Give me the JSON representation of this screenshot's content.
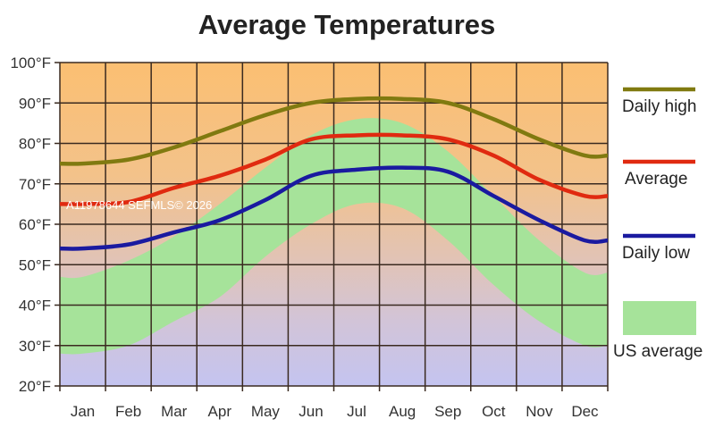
{
  "chart_data": {
    "type": "line",
    "title": "Average Temperatures",
    "categories": [
      "Jan",
      "Feb",
      "Mar",
      "Apr",
      "May",
      "Jun",
      "Jul",
      "Aug",
      "Sep",
      "Oct",
      "Nov",
      "Dec"
    ],
    "ylim": [
      20,
      100
    ],
    "yticks": [
      "20°F",
      "30°F",
      "40°F",
      "50°F",
      "60°F",
      "70°F",
      "80°F",
      "90°F",
      "100°F"
    ],
    "grid": true,
    "legend_position": "right",
    "series": [
      {
        "name": "Daily high",
        "color": "#807a10",
        "values": [
          75,
          76,
          79,
          83,
          87,
          90,
          91,
          91,
          90,
          86,
          81,
          77
        ]
      },
      {
        "name": "Average",
        "color": "#e02a10",
        "values": [
          65,
          65.5,
          69,
          72,
          76,
          81,
          82,
          82,
          81,
          77,
          71,
          67
        ]
      },
      {
        "name": "Daily low",
        "color": "#1a1aa0",
        "values": [
          54,
          55,
          58,
          61,
          66,
          72,
          73.5,
          74,
          73,
          67,
          61,
          56
        ]
      }
    ],
    "band": {
      "name": "US average",
      "color": "#a6e39a",
      "low": [
        28,
        30,
        36,
        42,
        52,
        60,
        65,
        64,
        56,
        45,
        36,
        30
      ],
      "high": [
        47,
        51,
        57,
        65,
        74,
        82,
        86,
        85,
        78,
        67,
        56,
        48
      ]
    }
  },
  "watermark": "A11978644 SEFMLS© 2026"
}
